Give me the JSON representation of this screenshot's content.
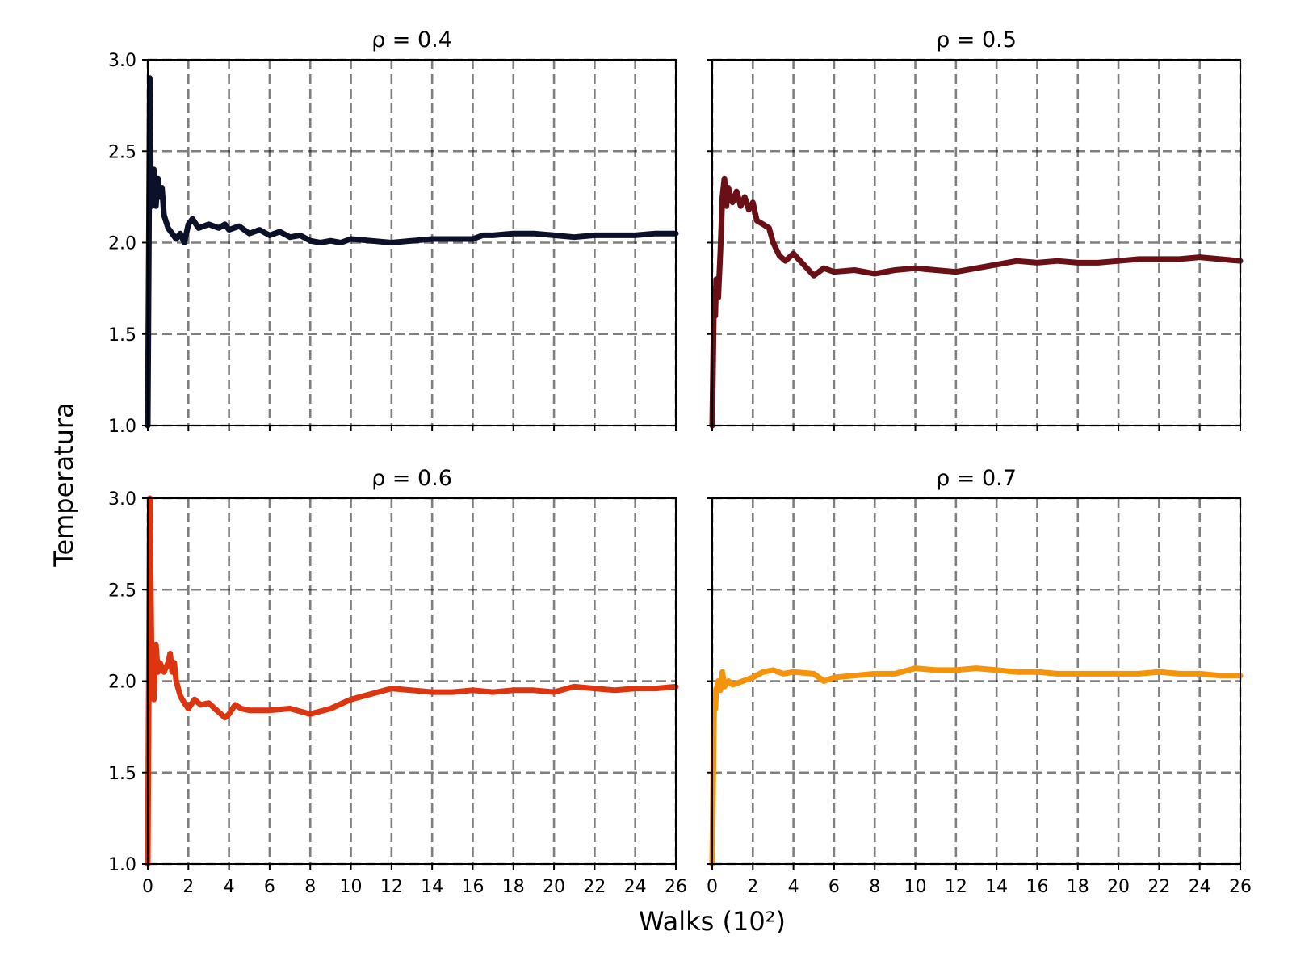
{
  "figure": {
    "xlabel": "Walks (10²)",
    "ylabel": "Temperatura"
  },
  "chart_data": [
    {
      "type": "line",
      "title": "ρ = 0.4",
      "xlabel": "",
      "ylabel": "Temperatura",
      "xlim": [
        0,
        26
      ],
      "ylim": [
        1.0,
        3.0
      ],
      "xticks": [
        "0",
        "2",
        "4",
        "6",
        "8",
        "10",
        "12",
        "14",
        "16",
        "18",
        "20",
        "22",
        "24",
        "26"
      ],
      "yticks": [
        "1.0",
        "1.5",
        "2.0",
        "2.5",
        "3.0"
      ],
      "grid": true,
      "color": "#0b1128",
      "x": [
        0,
        0.05,
        0.1,
        0.15,
        0.2,
        0.3,
        0.4,
        0.5,
        0.6,
        0.7,
        0.8,
        1.0,
        1.2,
        1.4,
        1.6,
        1.8,
        2.0,
        2.2,
        2.5,
        3.0,
        3.5,
        3.8,
        4.0,
        4.5,
        5.0,
        5.5,
        6.0,
        6.5,
        7.0,
        7.5,
        8.0,
        8.5,
        9.0,
        9.5,
        10.0,
        11.0,
        12.0,
        13.0,
        14.0,
        15.0,
        16.0,
        16.5,
        17.0,
        18.0,
        19.0,
        20.0,
        21.0,
        22.0,
        23.0,
        24.0,
        25.0,
        26.0
      ],
      "y": [
        1.0,
        1.95,
        2.9,
        2.35,
        2.2,
        2.4,
        2.2,
        2.35,
        2.25,
        2.3,
        2.15,
        2.08,
        2.05,
        2.02,
        2.05,
        2.0,
        2.1,
        2.13,
        2.08,
        2.1,
        2.08,
        2.1,
        2.07,
        2.09,
        2.05,
        2.07,
        2.04,
        2.06,
        2.03,
        2.04,
        2.01,
        2.0,
        2.01,
        2.0,
        2.02,
        2.01,
        2.0,
        2.01,
        2.02,
        2.02,
        2.02,
        2.04,
        2.04,
        2.05,
        2.05,
        2.04,
        2.03,
        2.04,
        2.04,
        2.04,
        2.05,
        2.05
      ]
    },
    {
      "type": "line",
      "title": "ρ = 0.5",
      "xlabel": "",
      "ylabel": "",
      "xlim": [
        0,
        26
      ],
      "ylim": [
        1.0,
        3.0
      ],
      "xticks": [
        "0",
        "2",
        "4",
        "6",
        "8",
        "10",
        "12",
        "14",
        "16",
        "18",
        "20",
        "22",
        "24",
        "26"
      ],
      "yticks": [
        "1.0",
        "1.5",
        "2.0",
        "2.5",
        "3.0"
      ],
      "grid": true,
      "color": "#6b0f16",
      "x": [
        0,
        0.05,
        0.1,
        0.15,
        0.2,
        0.3,
        0.4,
        0.5,
        0.6,
        0.7,
        0.8,
        0.9,
        1.0,
        1.2,
        1.4,
        1.6,
        1.8,
        2.0,
        2.2,
        2.5,
        2.8,
        3.0,
        3.3,
        3.6,
        4.0,
        4.5,
        5.0,
        5.5,
        6.0,
        7.0,
        8.0,
        9.0,
        10.0,
        11.0,
        12.0,
        13.0,
        14.0,
        15.0,
        16.0,
        17.0,
        18.0,
        19.0,
        20.0,
        21.0,
        22.0,
        23.0,
        24.0,
        25.0,
        26.0
      ],
      "y": [
        1.0,
        1.4,
        1.75,
        1.6,
        1.8,
        1.7,
        1.95,
        2.25,
        2.35,
        2.2,
        2.3,
        2.25,
        2.22,
        2.28,
        2.2,
        2.25,
        2.18,
        2.22,
        2.12,
        2.1,
        2.08,
        2.0,
        1.93,
        1.9,
        1.94,
        1.88,
        1.82,
        1.86,
        1.84,
        1.85,
        1.83,
        1.85,
        1.86,
        1.85,
        1.84,
        1.86,
        1.88,
        1.9,
        1.89,
        1.9,
        1.89,
        1.89,
        1.9,
        1.91,
        1.91,
        1.91,
        1.92,
        1.91,
        1.9
      ]
    },
    {
      "type": "line",
      "title": "ρ = 0.6",
      "xlabel": "",
      "ylabel": "",
      "xlim": [
        0,
        26
      ],
      "ylim": [
        1.0,
        3.0
      ],
      "xticks": [
        "0",
        "2",
        "4",
        "6",
        "8",
        "10",
        "12",
        "14",
        "16",
        "18",
        "20",
        "22",
        "24",
        "26"
      ],
      "yticks": [
        "1.0",
        "1.5",
        "2.0",
        "2.5",
        "3.0"
      ],
      "grid": true,
      "color": "#dc3510",
      "x": [
        0,
        0.05,
        0.1,
        0.15,
        0.2,
        0.3,
        0.4,
        0.5,
        0.6,
        0.8,
        1.0,
        1.1,
        1.2,
        1.3,
        1.4,
        1.6,
        1.8,
        2.0,
        2.3,
        2.6,
        3.0,
        3.5,
        3.8,
        4.0,
        4.3,
        4.6,
        5.0,
        6.0,
        7.0,
        8.0,
        9.0,
        10.0,
        11.0,
        12.0,
        13.0,
        14.0,
        15.0,
        16.0,
        17.0,
        18.0,
        19.0,
        20.0,
        21.0,
        22.0,
        23.0,
        24.0,
        25.0,
        26.0
      ],
      "y": [
        1.0,
        2.0,
        3.0,
        2.5,
        2.0,
        1.9,
        2.2,
        2.05,
        2.1,
        2.05,
        2.1,
        2.15,
        2.05,
        2.1,
        2.0,
        1.92,
        1.88,
        1.85,
        1.9,
        1.87,
        1.88,
        1.83,
        1.8,
        1.82,
        1.87,
        1.85,
        1.84,
        1.84,
        1.85,
        1.82,
        1.85,
        1.9,
        1.93,
        1.96,
        1.95,
        1.94,
        1.94,
        1.95,
        1.94,
        1.95,
        1.95,
        1.94,
        1.97,
        1.96,
        1.95,
        1.96,
        1.96,
        1.97
      ]
    },
    {
      "type": "line",
      "title": "ρ = 0.7",
      "xlabel": "",
      "ylabel": "",
      "xlim": [
        0,
        26
      ],
      "ylim": [
        1.0,
        3.0
      ],
      "xticks": [
        "0",
        "2",
        "4",
        "6",
        "8",
        "10",
        "12",
        "14",
        "16",
        "18",
        "20",
        "22",
        "24",
        "26"
      ],
      "yticks": [
        "1.0",
        "1.5",
        "2.0",
        "2.5",
        "3.0"
      ],
      "grid": true,
      "color": "#f5940a",
      "x": [
        0,
        0.05,
        0.1,
        0.15,
        0.2,
        0.3,
        0.4,
        0.5,
        0.6,
        0.8,
        1.0,
        1.5,
        2.0,
        2.5,
        3.0,
        3.5,
        4.0,
        5.0,
        5.5,
        6.0,
        7.0,
        8.0,
        9.0,
        10.0,
        11.0,
        12.0,
        13.0,
        14.0,
        15.0,
        16.0,
        17.0,
        18.0,
        19.0,
        20.0,
        21.0,
        22.0,
        23.0,
        24.0,
        25.0,
        26.0
      ],
      "y": [
        1.0,
        1.5,
        1.9,
        1.85,
        1.95,
        2.0,
        1.95,
        2.05,
        1.97,
        2.0,
        1.98,
        2.0,
        2.02,
        2.05,
        2.06,
        2.04,
        2.05,
        2.04,
        2.0,
        2.02,
        2.03,
        2.04,
        2.04,
        2.07,
        2.06,
        2.06,
        2.07,
        2.06,
        2.05,
        2.05,
        2.04,
        2.04,
        2.04,
        2.04,
        2.04,
        2.05,
        2.04,
        2.04,
        2.03,
        2.03
      ]
    }
  ]
}
